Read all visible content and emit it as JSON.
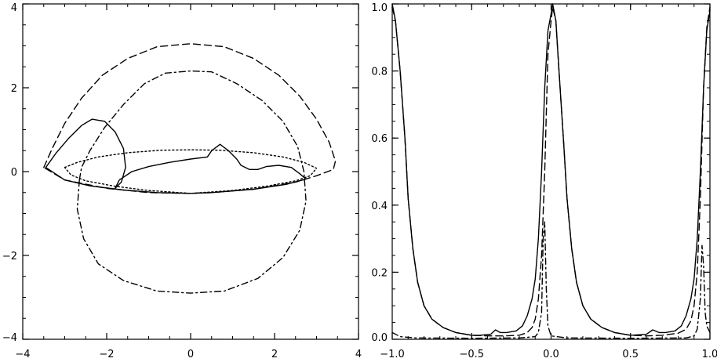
{
  "chart_data": [
    {
      "type": "line",
      "title": "",
      "xlabel": "",
      "ylabel": "",
      "xlim": [
        -4,
        4
      ],
      "ylim": [
        -4,
        4
      ],
      "xticks": [
        -4,
        -2,
        0,
        2,
        4
      ],
      "yticks": [
        -4,
        -2,
        0,
        2,
        4
      ],
      "xtick_labels": [
        "−4",
        "−2",
        "0",
        "2",
        "4"
      ],
      "ytick_labels": [
        "−4",
        "−2",
        "0",
        "2",
        "4"
      ],
      "grid": false,
      "series": [
        {
          "style": "solid",
          "points": [
            [
              -3.45,
              0.1
            ],
            [
              -3.2,
              0.45
            ],
            [
              -2.9,
              0.8
            ],
            [
              -2.6,
              1.1
            ],
            [
              -2.35,
              1.25
            ],
            [
              -2.05,
              1.2
            ],
            [
              -1.8,
              0.95
            ],
            [
              -1.6,
              0.55
            ],
            [
              -1.55,
              0.1
            ],
            [
              -1.65,
              -0.25
            ],
            [
              -1.8,
              -0.4
            ],
            [
              -1.7,
              -0.2
            ],
            [
              -1.4,
              0.0
            ],
            [
              -1.0,
              0.12
            ],
            [
              -0.5,
              0.22
            ],
            [
              0.0,
              0.3
            ],
            [
              0.4,
              0.35
            ],
            [
              0.5,
              0.5
            ],
            [
              0.7,
              0.65
            ],
            [
              0.9,
              0.5
            ],
            [
              1.1,
              0.3
            ],
            [
              1.2,
              0.15
            ],
            [
              1.4,
              0.05
            ],
            [
              1.6,
              0.05
            ],
            [
              1.8,
              0.12
            ],
            [
              2.1,
              0.15
            ],
            [
              2.4,
              0.1
            ],
            [
              2.6,
              -0.05
            ],
            [
              2.75,
              -0.18
            ],
            [
              2.3,
              -0.3
            ],
            [
              1.5,
              -0.42
            ],
            [
              0.5,
              -0.5
            ],
            [
              0.0,
              -0.52
            ],
            [
              -0.8,
              -0.5
            ],
            [
              -1.6,
              -0.44
            ],
            [
              -2.4,
              -0.34
            ],
            [
              -3.0,
              -0.2
            ],
            [
              -3.45,
              0.1
            ]
          ]
        },
        {
          "style": "dashed",
          "points": [
            [
              -3.5,
              0.1
            ],
            [
              -3.3,
              0.55
            ],
            [
              -3.0,
              1.15
            ],
            [
              -2.6,
              1.75
            ],
            [
              -2.1,
              2.3
            ],
            [
              -1.5,
              2.7
            ],
            [
              -0.8,
              2.98
            ],
            [
              0.0,
              3.05
            ],
            [
              0.8,
              2.98
            ],
            [
              1.5,
              2.7
            ],
            [
              2.1,
              2.3
            ],
            [
              2.6,
              1.8
            ],
            [
              3.0,
              1.25
            ],
            [
              3.3,
              0.7
            ],
            [
              3.45,
              0.25
            ],
            [
              3.4,
              0.05
            ],
            [
              3.0,
              -0.1
            ],
            [
              2.5,
              -0.25
            ],
            [
              1.5,
              -0.42
            ],
            [
              0.5,
              -0.5
            ],
            [
              0.0,
              -0.52
            ],
            [
              -1.0,
              -0.5
            ],
            [
              -2.0,
              -0.4
            ],
            [
              -3.0,
              -0.2
            ],
            [
              -3.5,
              0.1
            ]
          ]
        },
        {
          "style": "dotted",
          "points": [
            [
              -3.0,
              0.1
            ],
            [
              -2.7,
              0.22
            ],
            [
              -2.2,
              0.35
            ],
            [
              -1.5,
              0.45
            ],
            [
              -0.7,
              0.51
            ],
            [
              0.0,
              0.52
            ],
            [
              0.7,
              0.51
            ],
            [
              1.5,
              0.45
            ],
            [
              2.2,
              0.35
            ],
            [
              2.7,
              0.22
            ],
            [
              3.0,
              0.08
            ],
            [
              2.85,
              -0.1
            ],
            [
              2.5,
              -0.22
            ],
            [
              1.8,
              -0.35
            ],
            [
              1.0,
              -0.45
            ],
            [
              0.0,
              -0.52
            ],
            [
              -1.0,
              -0.45
            ],
            [
              -1.8,
              -0.35
            ],
            [
              -2.5,
              -0.22
            ],
            [
              -2.85,
              -0.08
            ],
            [
              -3.0,
              0.1
            ]
          ]
        },
        {
          "style": "dashdot",
          "points": [
            [
              -2.65,
              -0.2
            ],
            [
              -2.7,
              -0.9
            ],
            [
              -2.55,
              -1.6
            ],
            [
              -2.2,
              -2.2
            ],
            [
              -1.6,
              -2.6
            ],
            [
              -0.8,
              -2.85
            ],
            [
              0.0,
              -2.9
            ],
            [
              0.8,
              -2.85
            ],
            [
              1.6,
              -2.55
            ],
            [
              2.2,
              -2.05
            ],
            [
              2.6,
              -1.4
            ],
            [
              2.75,
              -0.7
            ],
            [
              2.7,
              0.0
            ],
            [
              2.55,
              0.6
            ],
            [
              2.2,
              1.2
            ],
            [
              1.7,
              1.7
            ],
            [
              1.1,
              2.1
            ],
            [
              0.5,
              2.38
            ],
            [
              0.0,
              2.4
            ],
            [
              -0.6,
              2.35
            ],
            [
              -1.1,
              2.1
            ],
            [
              -1.6,
              1.6
            ],
            [
              -2.05,
              1.05
            ],
            [
              -2.4,
              0.5
            ],
            [
              -2.6,
              0.1
            ],
            [
              -2.65,
              -0.2
            ]
          ]
        }
      ]
    },
    {
      "type": "line",
      "title": "",
      "xlabel": "",
      "ylabel": "",
      "xlim": [
        -1.0,
        1.0
      ],
      "ylim": [
        0.0,
        1.0
      ],
      "xticks": [
        -1.0,
        -0.5,
        0.0,
        0.5,
        1.0
      ],
      "yticks": [
        0.0,
        0.2,
        0.4,
        0.6,
        0.8,
        1.0
      ],
      "xtick_labels": [
        "−1.0",
        "−0.5",
        "0.0",
        "0.5",
        "1.0"
      ],
      "ytick_labels": [
        "0.0",
        "0.2",
        "0.4",
        "0.6",
        "0.8",
        "1.0"
      ],
      "grid": false,
      "series": [
        {
          "style": "solid",
          "points": [
            [
              -1.0,
              1.0
            ],
            [
              -0.98,
              0.95
            ],
            [
              -0.95,
              0.8
            ],
            [
              -0.92,
              0.6
            ],
            [
              -0.9,
              0.42
            ],
            [
              -0.87,
              0.27
            ],
            [
              -0.84,
              0.17
            ],
            [
              -0.8,
              0.1
            ],
            [
              -0.75,
              0.06
            ],
            [
              -0.68,
              0.035
            ],
            [
              -0.6,
              0.02
            ],
            [
              -0.5,
              0.012
            ],
            [
              -0.45,
              0.012
            ],
            [
              -0.38,
              0.015
            ],
            [
              -0.35,
              0.028
            ],
            [
              -0.32,
              0.02
            ],
            [
              -0.28,
              0.02
            ],
            [
              -0.22,
              0.025
            ],
            [
              -0.18,
              0.04
            ],
            [
              -0.15,
              0.07
            ],
            [
              -0.12,
              0.12
            ],
            [
              -0.1,
              0.18
            ],
            [
              -0.08,
              0.3
            ],
            [
              -0.06,
              0.5
            ],
            [
              -0.04,
              0.75
            ],
            [
              -0.02,
              0.92
            ],
            [
              0.0,
              0.97
            ],
            [
              0.01,
              1.0
            ],
            [
              0.03,
              0.95
            ],
            [
              0.05,
              0.8
            ],
            [
              0.08,
              0.58
            ],
            [
              0.1,
              0.42
            ],
            [
              0.13,
              0.27
            ],
            [
              0.16,
              0.17
            ],
            [
              0.2,
              0.1
            ],
            [
              0.25,
              0.06
            ],
            [
              0.32,
              0.035
            ],
            [
              0.4,
              0.02
            ],
            [
              0.5,
              0.012
            ],
            [
              0.6,
              0.015
            ],
            [
              0.64,
              0.028
            ],
            [
              0.68,
              0.02
            ],
            [
              0.72,
              0.02
            ],
            [
              0.78,
              0.025
            ],
            [
              0.82,
              0.04
            ],
            [
              0.85,
              0.07
            ],
            [
              0.88,
              0.12
            ],
            [
              0.9,
              0.18
            ],
            [
              0.92,
              0.3
            ],
            [
              0.94,
              0.5
            ],
            [
              0.96,
              0.75
            ],
            [
              0.98,
              0.92
            ],
            [
              1.0,
              0.98
            ]
          ]
        },
        {
          "style": "dashed",
          "points": [
            [
              -1.0,
              0.99
            ],
            [
              -0.98,
              0.95
            ],
            [
              -0.95,
              0.8
            ],
            [
              -0.92,
              0.6
            ],
            [
              -0.9,
              0.42
            ],
            [
              -0.87,
              0.27
            ],
            [
              -0.84,
              0.17
            ],
            [
              -0.8,
              0.1
            ],
            [
              -0.75,
              0.06
            ],
            [
              -0.68,
              0.035
            ],
            [
              -0.6,
              0.02
            ],
            [
              -0.5,
              0.012
            ],
            [
              -0.4,
              0.01
            ],
            [
              -0.3,
              0.01
            ],
            [
              -0.2,
              0.012
            ],
            [
              -0.15,
              0.02
            ],
            [
              -0.12,
              0.035
            ],
            [
              -0.1,
              0.06
            ],
            [
              -0.08,
              0.12
            ],
            [
              -0.06,
              0.25
            ],
            [
              -0.04,
              0.5
            ],
            [
              -0.02,
              0.85
            ],
            [
              0.0,
              0.95
            ],
            [
              0.01,
              0.99
            ],
            [
              0.03,
              0.95
            ],
            [
              0.05,
              0.8
            ],
            [
              0.08,
              0.58
            ],
            [
              0.1,
              0.42
            ],
            [
              0.13,
              0.27
            ],
            [
              0.16,
              0.17
            ],
            [
              0.2,
              0.1
            ],
            [
              0.25,
              0.06
            ],
            [
              0.32,
              0.035
            ],
            [
              0.4,
              0.02
            ],
            [
              0.5,
              0.012
            ],
            [
              0.6,
              0.01
            ],
            [
              0.7,
              0.012
            ],
            [
              0.8,
              0.018
            ],
            [
              0.85,
              0.03
            ],
            [
              0.88,
              0.055
            ],
            [
              0.9,
              0.1
            ],
            [
              0.92,
              0.2
            ],
            [
              0.94,
              0.42
            ],
            [
              0.96,
              0.75
            ],
            [
              0.98,
              0.93
            ],
            [
              1.0,
              0.99
            ]
          ]
        },
        {
          "style": "dashdot",
          "points": [
            [
              -1.0,
              0.02
            ],
            [
              -0.95,
              0.008
            ],
            [
              -0.85,
              0.004
            ],
            [
              -0.5,
              0.003
            ],
            [
              -0.2,
              0.004
            ],
            [
              -0.1,
              0.008
            ],
            [
              -0.08,
              0.02
            ],
            [
              -0.06,
              0.08
            ],
            [
              -0.05,
              0.3
            ],
            [
              -0.04,
              0.35
            ],
            [
              -0.03,
              0.15
            ],
            [
              -0.02,
              0.04
            ],
            [
              0.0,
              0.01
            ],
            [
              0.1,
              0.004
            ],
            [
              0.5,
              0.003
            ],
            [
              0.85,
              0.004
            ],
            [
              0.9,
              0.01
            ],
            [
              0.92,
              0.03
            ],
            [
              0.94,
              0.12
            ],
            [
              0.95,
              0.28
            ],
            [
              0.96,
              0.22
            ],
            [
              0.97,
              0.08
            ],
            [
              0.98,
              0.04
            ],
            [
              1.0,
              0.02
            ]
          ]
        }
      ]
    }
  ]
}
